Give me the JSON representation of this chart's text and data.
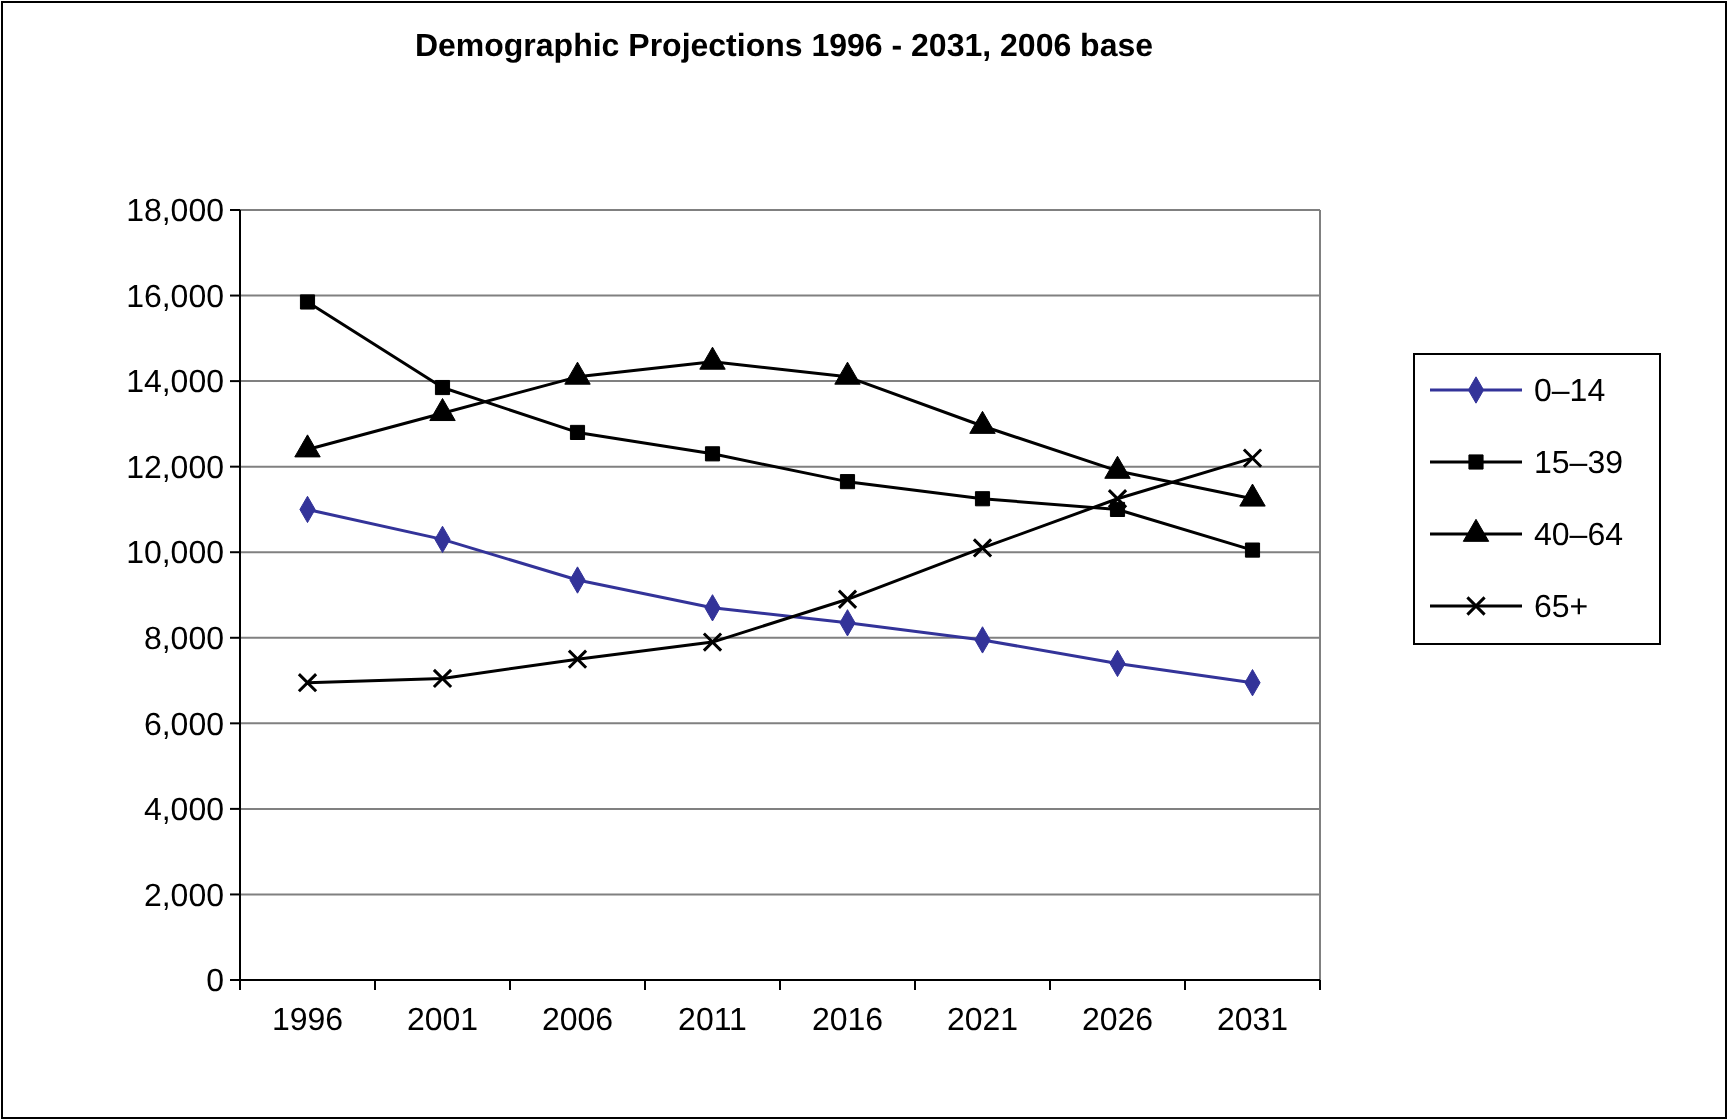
{
  "chart_data": {
    "type": "line",
    "title": "Demographic Projections 1996 - 2031, 2006 base",
    "categories": [
      "1996",
      "2001",
      "2006",
      "2011",
      "2016",
      "2021",
      "2026",
      "2031"
    ],
    "series": [
      {
        "name": "0–14",
        "color": "#333399",
        "marker": "diamond",
        "values": [
          11000,
          10300,
          9350,
          8700,
          8350,
          7950,
          7400,
          6950
        ]
      },
      {
        "name": "15–39",
        "color": "#000000",
        "marker": "square",
        "values": [
          15850,
          13850,
          12800,
          12300,
          11650,
          11250,
          11000,
          10050
        ]
      },
      {
        "name": "40–64",
        "color": "#000000",
        "marker": "triangle",
        "values": [
          12400,
          13250,
          14100,
          14450,
          14100,
          12950,
          11900,
          11250
        ]
      },
      {
        "name": "65+",
        "color": "#000000",
        "marker": "cross",
        "values": [
          6950,
          7050,
          7500,
          7900,
          8900,
          10100,
          11250,
          12200
        ]
      }
    ],
    "ylim": [
      0,
      18000
    ],
    "yticks": [
      {
        "value": 0,
        "label": "0"
      },
      {
        "value": 2000,
        "label": "2,000"
      },
      {
        "value": 4000,
        "label": "4,000"
      },
      {
        "value": 6000,
        "label": "6,000"
      },
      {
        "value": 8000,
        "label": "8,000"
      },
      {
        "value": 10000,
        "label": "10,000"
      },
      {
        "value": 12000,
        "label": "12,000"
      },
      {
        "value": 14000,
        "label": "14,000"
      },
      {
        "value": 16000,
        "label": "16,000"
      },
      {
        "value": 18000,
        "label": "18,000"
      }
    ],
    "grid": "y",
    "legend": "right"
  }
}
